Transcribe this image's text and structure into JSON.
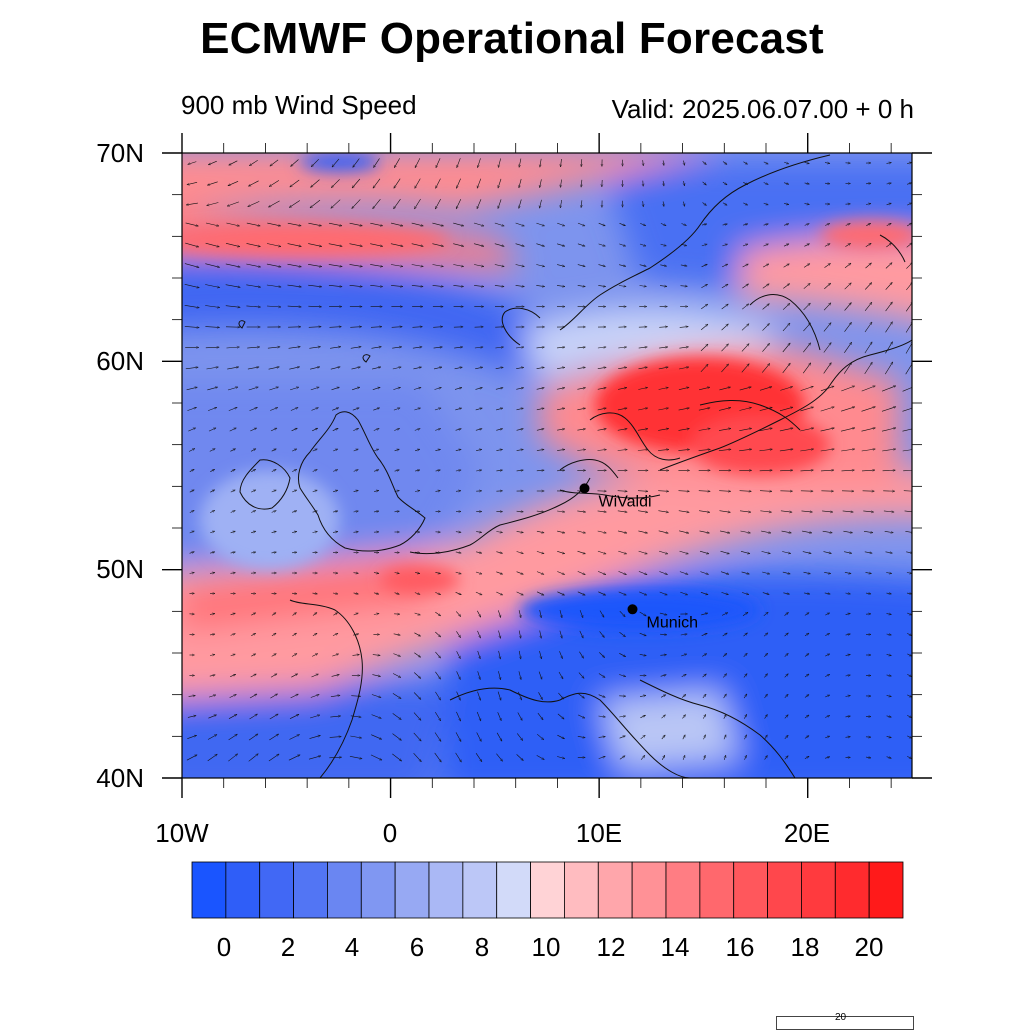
{
  "title": "ECMWF Operational Forecast",
  "subtitle_left": "900 mb Wind Speed",
  "subtitle_right": "Valid: 2025.06.07.00 + 0 h",
  "lat_labels": [
    "70N",
    "60N",
    "50N",
    "40N"
  ],
  "lon_labels": [
    "10W",
    "0",
    "10E",
    "20E"
  ],
  "colorbar": {
    "labels": [
      "0",
      "2",
      "4",
      "6",
      "8",
      "10",
      "12",
      "14",
      "16",
      "18",
      "20"
    ],
    "colors": [
      "#1a55ff",
      "#2f5ef8",
      "#4168f5",
      "#5275f4",
      "#6a86f2",
      "#8097f2",
      "#97a9f3",
      "#aab8f5",
      "#bcc7f7",
      "#d2daf9",
      "#ffd3d6",
      "#ffbcc0",
      "#ffa6ab",
      "#ff9196",
      "#ff7d83",
      "#ff686d",
      "#ff575c",
      "#ff474c",
      "#ff3a3e",
      "#ff2b2e",
      "#ff1a1a"
    ]
  },
  "cities": [
    {
      "name": "WiValdi",
      "lon": 9.3,
      "lat": 53.9
    },
    {
      "name": "Munich",
      "lon": 11.6,
      "lat": 48.1
    }
  ],
  "reference_vector_label": "20",
  "map": {
    "lon_range": [
      -10,
      25
    ],
    "lat_range": [
      40,
      70
    ]
  }
}
